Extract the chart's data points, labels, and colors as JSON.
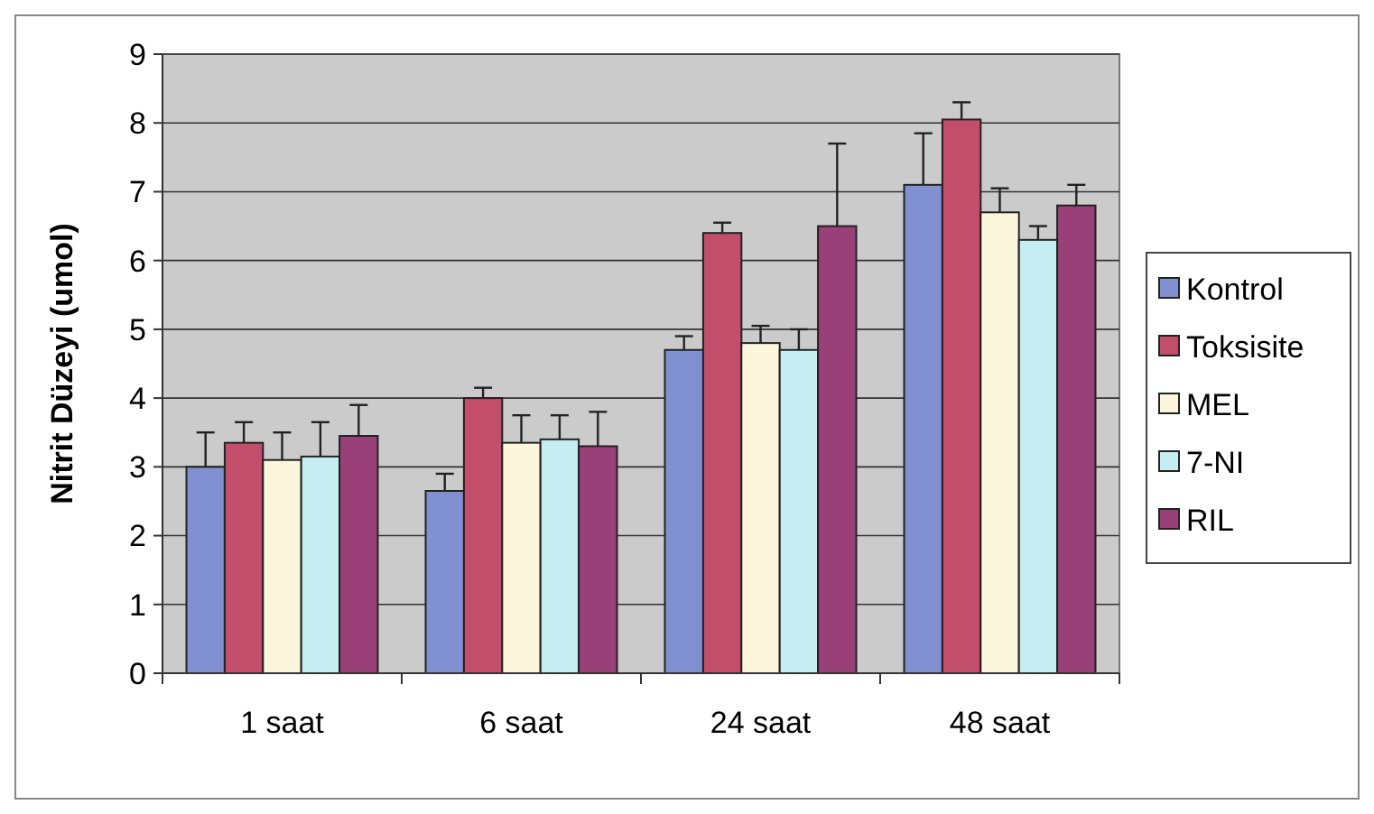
{
  "chart_data": {
    "type": "bar",
    "ylabel": "Nitrit Düzeyi (umol)",
    "categories": [
      "1 saat",
      "6 saat",
      "24 saat",
      "48 saat"
    ],
    "series": [
      {
        "name": "Kontrol",
        "color": "#8090d0",
        "values": [
          3.0,
          2.65,
          4.7,
          7.1
        ],
        "errors": [
          [
            3.0,
            3.5
          ],
          [
            2.65,
            2.9
          ],
          [
            4.7,
            4.9
          ],
          [
            7.1,
            7.85
          ]
        ]
      },
      {
        "name": "Toksisite",
        "color": "#c24e6c",
        "values": [
          3.35,
          4.0,
          6.4,
          8.05
        ],
        "errors": [
          [
            3.35,
            3.65
          ],
          [
            4.0,
            4.15
          ],
          [
            6.4,
            6.55
          ],
          [
            8.05,
            8.3
          ]
        ]
      },
      {
        "name": "MEL",
        "color": "#fcf7dc",
        "values": [
          3.1,
          3.35,
          4.8,
          6.7
        ],
        "errors": [
          [
            3.1,
            3.5
          ],
          [
            3.35,
            3.75
          ],
          [
            4.8,
            5.05
          ],
          [
            6.7,
            7.05
          ]
        ]
      },
      {
        "name": "7-NI",
        "color": "#c6eef2",
        "values": [
          3.15,
          3.4,
          4.7,
          6.3
        ],
        "errors": [
          [
            3.15,
            3.65
          ],
          [
            3.4,
            3.75
          ],
          [
            4.7,
            5.0
          ],
          [
            6.3,
            6.5
          ]
        ]
      },
      {
        "name": "RIL",
        "color": "#9a4078",
        "values": [
          3.45,
          3.3,
          6.5,
          6.8
        ],
        "errors": [
          [
            3.45,
            3.9
          ],
          [
            3.3,
            3.8
          ],
          [
            6.5,
            7.7
          ],
          [
            6.8,
            7.1
          ]
        ]
      }
    ],
    "ylim": [
      0,
      9
    ],
    "yticks": [
      0,
      1,
      2,
      3,
      4,
      5,
      6,
      7,
      8,
      9
    ],
    "grid": "y",
    "legend": "right"
  }
}
